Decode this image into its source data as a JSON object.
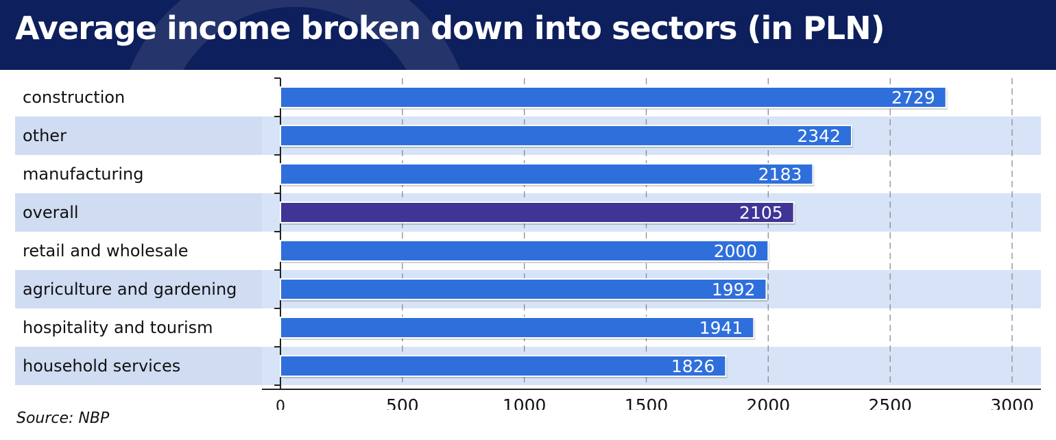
{
  "header": {
    "title": "Average income broken down into sectors (in PLN)"
  },
  "source": "Source: NBP",
  "colors": {
    "header_bg": "#0d1f5c",
    "bar": "#2f6fdc",
    "bar_highlight": "#3f3596",
    "band": "#d7e3f7",
    "label_text": "#111111",
    "value_text": "#ffffff"
  },
  "chart_data": {
    "type": "bar",
    "orientation": "horizontal",
    "title": "Average income broken down into sectors (in PLN)",
    "categories": [
      "construction",
      "other",
      "manufacturing",
      "overall",
      "retail and wholesale",
      "agriculture and gardening",
      "hospitality and tourism",
      "household services"
    ],
    "values": [
      2729,
      2342,
      2183,
      2105,
      2000,
      1992,
      1941,
      1826
    ],
    "highlight_category": "overall",
    "xlim": [
      0,
      3000
    ],
    "xticks": [
      0,
      500,
      1000,
      1500,
      2000,
      2500,
      3000
    ],
    "grid": "vertical-dashed",
    "data_labels": true,
    "xlabel": "",
    "ylabel": ""
  }
}
